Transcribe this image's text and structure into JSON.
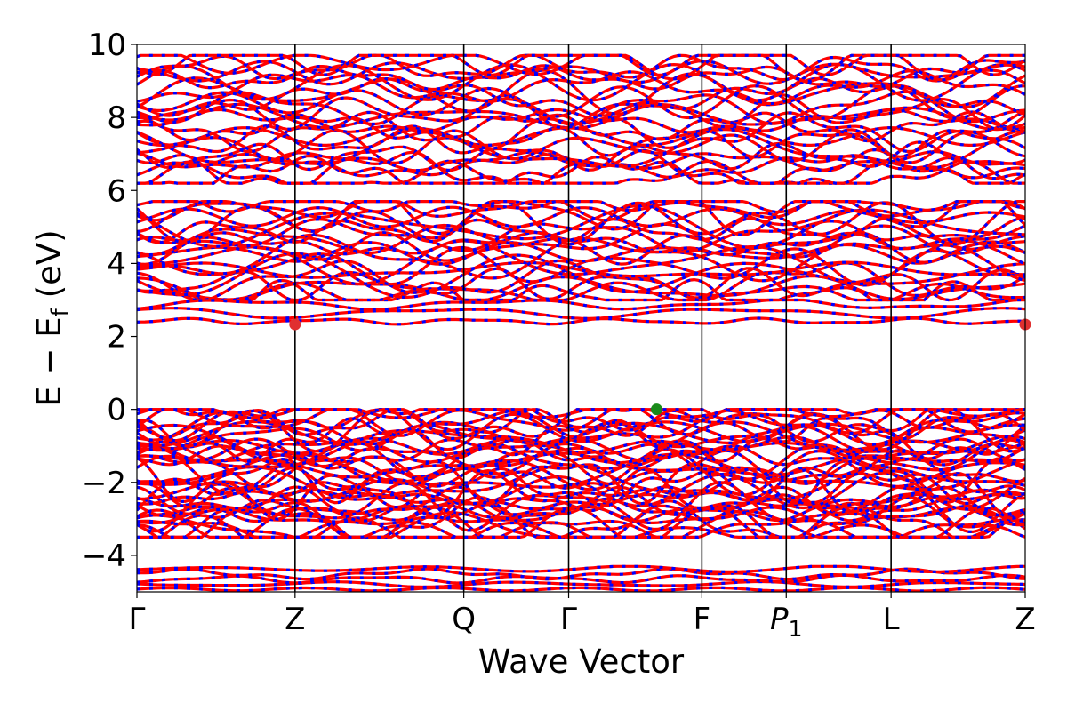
{
  "chart_data": {
    "type": "line",
    "title": "",
    "xlabel": "Wave Vector",
    "ylabel": "E − E_f (eV)",
    "ylabel_parts": {
      "main": "E − E",
      "sub": "f",
      "unit": "(eV)"
    },
    "ylim": [
      -5,
      10
    ],
    "yticks": [
      10,
      8,
      6,
      4,
      2,
      0,
      -2,
      -4
    ],
    "ytick_labels": [
      "10",
      "8",
      "6",
      "4",
      "2",
      "0",
      "−2",
      "−4"
    ],
    "kpath_ticks": [
      {
        "label": "Γ",
        "sub": "",
        "pos": 0.0
      },
      {
        "label": "Z",
        "sub": "",
        "pos": 0.178
      },
      {
        "label": "Q",
        "sub": "",
        "pos": 0.368
      },
      {
        "label": "Γ",
        "sub": "",
        "pos": 0.486
      },
      {
        "label": "F",
        "sub": "",
        "pos": 0.636
      },
      {
        "label": "P",
        "sub": "1",
        "pos": 0.731
      },
      {
        "label": "L",
        "sub": "",
        "pos": 0.849
      },
      {
        "label": "Z",
        "sub": "",
        "pos": 1.0
      }
    ],
    "band_style": {
      "color_primary": "#ff0000",
      "color_secondary": "#0000ff",
      "vertical_line_color": "#000000"
    },
    "band_groups": [
      {
        "name": "conduction-high",
        "energy_range": [
          6.2,
          9.7
        ],
        "count": 26
      },
      {
        "name": "conduction-mid",
        "energy_range": [
          3.0,
          5.7
        ],
        "count": 22
      },
      {
        "name": "conduction-low",
        "energy_range": [
          2.3,
          3.0
        ],
        "count": 3
      },
      {
        "name": "valence-top",
        "energy_range": [
          -3.5,
          0.0
        ],
        "count": 40
      },
      {
        "name": "valence-deep",
        "energy_range": [
          -5.0,
          -4.3
        ],
        "count": 5
      }
    ],
    "special_points": [
      {
        "name": "cbm",
        "x": 0.178,
        "y": 2.33,
        "color": "#e03030"
      },
      {
        "name": "cbm-edge",
        "x": 1.0,
        "y": 2.33,
        "color": "#e03030"
      },
      {
        "name": "vbm",
        "x": 0.585,
        "y": 0.0,
        "color": "#1a8a1a"
      }
    ],
    "grid": false,
    "legend": "none"
  }
}
